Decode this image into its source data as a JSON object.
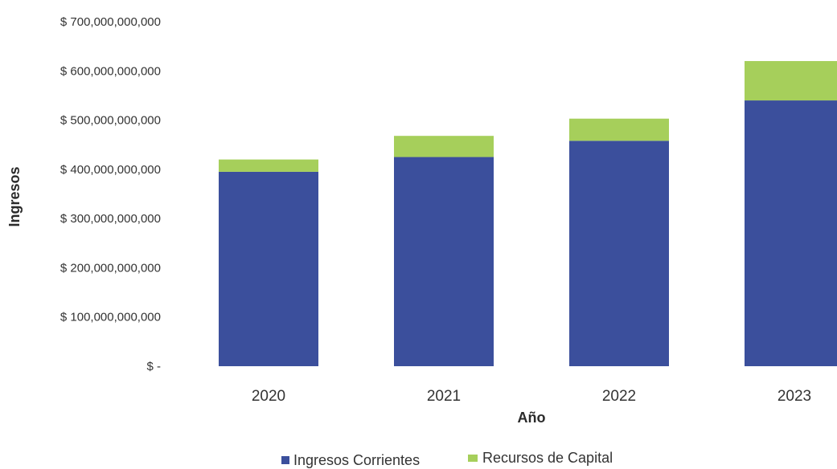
{
  "chart_data": {
    "type": "bar",
    "stacked": true,
    "categories": [
      "2020",
      "2021",
      "2022",
      "2023"
    ],
    "series": [
      {
        "name": "Ingresos Corrientes",
        "color": "#3b4f9c",
        "values": [
          395000000000,
          425000000000,
          458000000000,
          540000000000
        ]
      },
      {
        "name": "Recursos de Capital",
        "color": "#a6cf5b",
        "values": [
          25000000000,
          43000000000,
          45000000000,
          80000000000
        ]
      }
    ],
    "xlabel": "Año",
    "ylabel": "Ingresos",
    "ylim": [
      0,
      700000000000
    ],
    "yticks": [
      0,
      100000000000,
      200000000000,
      300000000000,
      400000000000,
      500000000000,
      600000000000,
      700000000000
    ],
    "ytick_labels": [
      "$ -",
      "$ 100,000,000,000",
      "$ 200,000,000,000",
      "$ 300,000,000,000",
      "$ 400,000,000,000",
      "$ 500,000,000,000",
      "$ 600,000,000,000",
      "$ 700,000,000,000"
    ],
    "grid": false,
    "legend_position": "bottom"
  }
}
